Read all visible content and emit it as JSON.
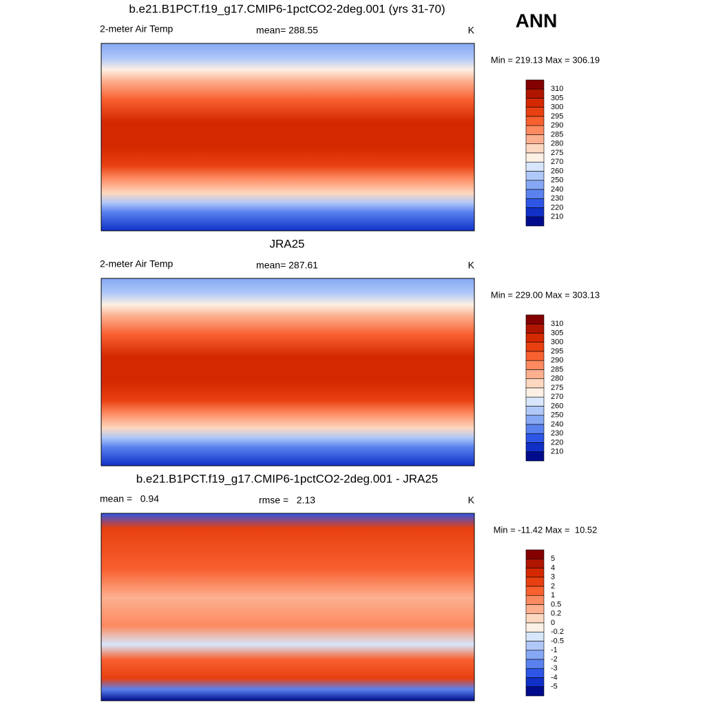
{
  "season": "ANN",
  "panels": [
    {
      "title": "b.e21.B1PCT.f19_g17.CMIP6-1pctCO2-2deg.001 (yrs 31-70)",
      "left_label": "2-meter Air Temp",
      "center_label": "mean= 288.55",
      "right_label": "K",
      "min_max": "Min = 219.13 Max = 306.19",
      "colorbar_labels": [
        "310",
        "305",
        "300",
        "295",
        "290",
        "285",
        "280",
        "275",
        "270",
        "260",
        "250",
        "240",
        "230",
        "220",
        "210"
      ]
    },
    {
      "title": "JRA25",
      "left_label": "2-meter Air Temp",
      "center_label": "mean= 287.61",
      "right_label": "K",
      "min_max": "Min = 229.00 Max = 303.13",
      "colorbar_labels": [
        "310",
        "305",
        "300",
        "295",
        "290",
        "285",
        "280",
        "275",
        "270",
        "260",
        "250",
        "240",
        "230",
        "220",
        "210"
      ]
    },
    {
      "title": "b.e21.B1PCT.f19_g17.CMIP6-1pctCO2-2deg.001 - JRA25",
      "left_label": "mean =   0.94",
      "center_label": "rmse =   2.13",
      "right_label": "K",
      "min_max": "Min = -11.42 Max =  10.52",
      "colorbar_labels": [
        "5",
        "4",
        "3",
        "2",
        "1",
        "0.5",
        "0.2",
        "0",
        "-0.2",
        "-0.5",
        "-1",
        "-2",
        "-3",
        "-4",
        "-5"
      ]
    }
  ],
  "colorbar_colors": [
    "#840000",
    "#b01500",
    "#d42800",
    "#e84010",
    "#f86030",
    "#fd8a60",
    "#fdb090",
    "#fdd8c0",
    "#fdf0e4",
    "#d8e6fb",
    "#b0c8f8",
    "#86a8f4",
    "#5a82ef",
    "#2e56e6",
    "#1030c8",
    "#000c8c"
  ]
}
